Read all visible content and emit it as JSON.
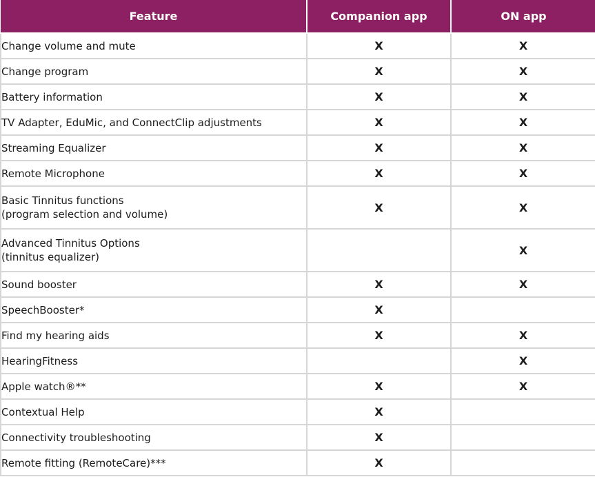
{
  "table": {
    "headers": {
      "feature": "Feature",
      "companion": "Companion app",
      "on": "ON app"
    },
    "rows": [
      {
        "lines": [
          "Change volume and mute"
        ],
        "companion": "X",
        "on": "X"
      },
      {
        "lines": [
          "Change program"
        ],
        "companion": "X",
        "on": "X"
      },
      {
        "lines": [
          "Battery information"
        ],
        "companion": "X",
        "on": "X"
      },
      {
        "lines": [
          "TV Adapter, EduMic, and ConnectClip adjustments"
        ],
        "companion": "X",
        "on": "X"
      },
      {
        "lines": [
          "Streaming Equalizer"
        ],
        "companion": "X",
        "on": "X"
      },
      {
        "lines": [
          "Remote Microphone"
        ],
        "companion": "X",
        "on": "X"
      },
      {
        "lines": [
          "Basic Tinnitus functions",
          "(program selection and volume)"
        ],
        "companion": "X",
        "on": "X"
      },
      {
        "lines": [
          "Advanced Tinnitus Options",
          "(tinnitus equalizer)"
        ],
        "companion": "",
        "on": "X"
      },
      {
        "lines": [
          "Sound booster"
        ],
        "companion": "X",
        "on": "X"
      },
      {
        "lines": [
          "SpeechBooster*"
        ],
        "companion": "X",
        "on": ""
      },
      {
        "lines": [
          "Find my hearing aids"
        ],
        "companion": "X",
        "on": "X"
      },
      {
        "lines": [
          "HearingFitness"
        ],
        "companion": "",
        "on": "X"
      },
      {
        "lines": [
          "Apple watch®**"
        ],
        "companion": "X",
        "on": "X"
      },
      {
        "lines": [
          "Contextual Help"
        ],
        "companion": "X",
        "on": ""
      },
      {
        "lines": [
          "Connectivity troubleshooting"
        ],
        "companion": "X",
        "on": ""
      },
      {
        "lines": [
          "Remote fitting (RemoteCare)***"
        ],
        "companion": "X",
        "on": ""
      }
    ]
  },
  "colors": {
    "header_bg": "#8c2063",
    "header_text": "#ffffff",
    "grid": "#d6d6d6",
    "text": "#1c1c1c"
  }
}
